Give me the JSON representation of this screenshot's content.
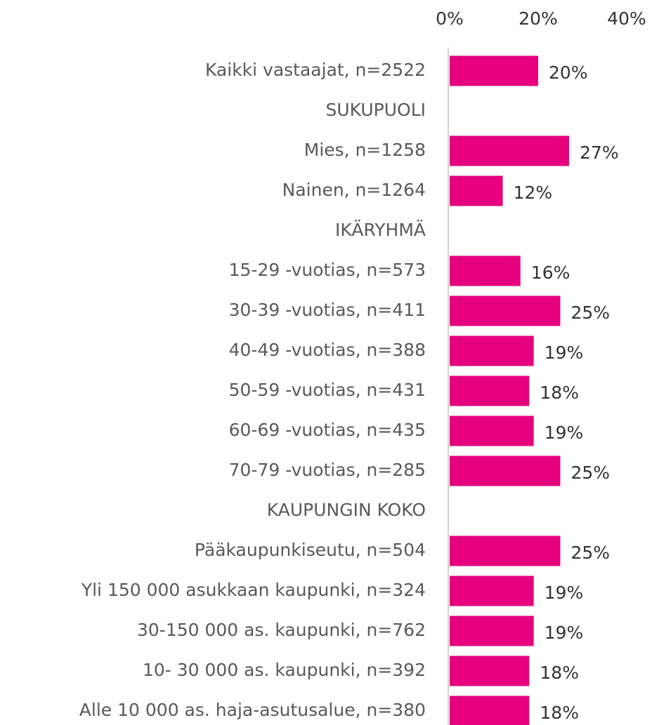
{
  "chart_data": {
    "type": "hbar",
    "categories": [
      "Kaikki vastaajat, n=2522",
      "SUKUPUOLI",
      "Mies, n=1258",
      "Nainen, n=1264",
      "IKÄRYHMÄ",
      "15-29 -vuotias, n=573",
      "30-39 -vuotias, n=411",
      "40-49 -vuotias, n=388",
      "50-59 -vuotias, n=431",
      "60-69 -vuotias, n=435",
      "70-79 -vuotias, n=285",
      "KAUPUNGIN KOKO",
      "Pääkaupunkiseutu, n=504",
      "Yli 150 000 asukkaan kaupunki, n=324",
      "30-150 000 as. kaupunki, n=762",
      "10- 30 000 as. kaupunki, n=392",
      "Alle 10 000 as. haja-asutusalue, n=380"
    ],
    "values": [
      20,
      null,
      27,
      12,
      null,
      16,
      25,
      19,
      18,
      19,
      25,
      null,
      25,
      19,
      19,
      18,
      18
    ],
    "value_labels": [
      "20%",
      null,
      "27%",
      "12%",
      null,
      "16%",
      "25%",
      "19%",
      "18%",
      "19%",
      "25%",
      null,
      "25%",
      "19%",
      "19%",
      "18%",
      "18%"
    ],
    "color": "#e6007e",
    "xlim": [
      0,
      40
    ],
    "xticks": [
      {
        "value": 0,
        "label": "0%"
      },
      {
        "value": 20,
        "label": "20%"
      },
      {
        "value": 40,
        "label": "40%"
      }
    ]
  }
}
